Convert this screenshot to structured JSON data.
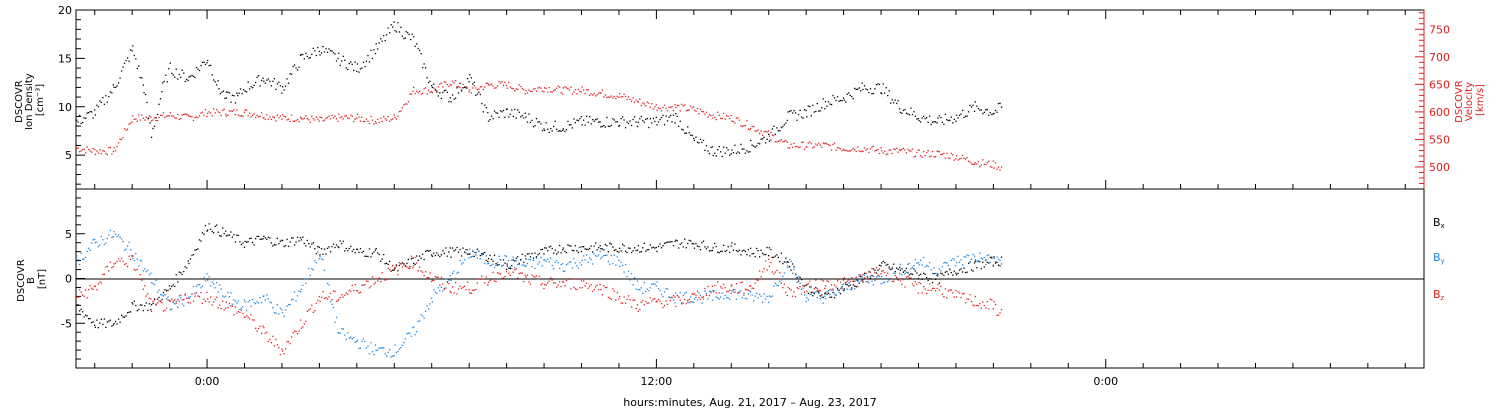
{
  "xlabel": "hours:minutes, Aug. 21, 2017 – Aug. 23, 2017",
  "x_tick_labels": [
    "0:00",
    "12:00",
    "0:00"
  ],
  "colors": {
    "black": "#000000",
    "red": "#e02020",
    "blue": "#1a88e0"
  },
  "panels": {
    "top": {
      "left_label_lines": [
        "DSCOVR",
        "Ion Density",
        "[cm⁻³]"
      ],
      "right_label_lines": [
        "DSCOVR",
        "Velocity",
        "[km/s]"
      ],
      "left_ticks": [
        "20",
        "15",
        "10",
        "5"
      ],
      "right_ticks": [
        "750",
        "700",
        "650",
        "600",
        "550",
        "500"
      ]
    },
    "bottom": {
      "left_label_lines": [
        "DSCOVR",
        "B",
        "[nT]"
      ],
      "left_ticks": [
        "5",
        "0",
        "-5"
      ],
      "legend": [
        "Bx",
        "By",
        "Bz"
      ]
    }
  },
  "chart_data": [
    {
      "type": "scatter",
      "title": "",
      "xlabel": "hours:minutes, Aug. 21, 2017 – Aug. 23, 2017",
      "x_range_hours": [
        -3.5,
        32.5
      ],
      "y_left": {
        "label": "DSCOVR Ion Density [cm^-3]",
        "range": [
          1.5,
          20
        ]
      },
      "y_right": {
        "label": "DSCOVR Velocity [km/s]",
        "range": [
          460,
          785
        ]
      },
      "series": [
        {
          "name": "Ion Density",
          "axis": "left",
          "color": "#000000",
          "x": [
            -3.5,
            -3,
            -2.5,
            -2,
            -1.7,
            -1.5,
            -1.2,
            -1,
            -0.8,
            -0.5,
            0,
            0.3,
            0.5,
            0.8,
            1,
            1.5,
            2,
            2.5,
            3,
            3.5,
            4,
            4.5,
            5,
            5.3,
            5.5,
            6,
            6.5,
            7,
            7.5,
            8,
            8.5,
            9,
            9.5,
            10,
            10.5,
            11,
            11.5,
            12,
            12.5,
            13,
            13.5,
            14,
            14.5,
            15,
            15.5,
            16,
            16.5,
            17,
            17.5,
            18,
            18.5,
            19,
            19.5,
            20,
            20.5,
            21,
            21.2
          ],
          "y": [
            8.5,
            9.5,
            12,
            16,
            12,
            7,
            12,
            14,
            13.5,
            13,
            15,
            12,
            11,
            11,
            12,
            13,
            12,
            15,
            16,
            15,
            14,
            16,
            18.5,
            17.5,
            17,
            12,
            11,
            13,
            9,
            9.5,
            9,
            8,
            8,
            8.5,
            8.5,
            8.5,
            8.5,
            8.5,
            9,
            6.5,
            5.5,
            5.5,
            6,
            7,
            9,
            9.5,
            10.5,
            11,
            12,
            12,
            10,
            9,
            8.5,
            9,
            10,
            9.5,
            10
          ]
        },
        {
          "name": "Velocity",
          "axis": "right",
          "color": "#e02020",
          "x": [
            -3.5,
            -3,
            -2.5,
            -2,
            -1.5,
            -1,
            -0.5,
            0,
            0.5,
            1,
            1.5,
            2,
            2.5,
            3,
            3.5,
            4,
            4.5,
            5,
            5.5,
            6,
            6.5,
            7,
            7.5,
            8,
            8.5,
            9,
            9.5,
            10,
            10.5,
            11,
            11.5,
            12,
            12.5,
            13,
            13.5,
            14,
            14.5,
            15,
            15.5,
            16,
            16.5,
            17,
            17.5,
            18,
            18.5,
            19,
            19.5,
            20,
            20.5,
            21,
            21.2
          ],
          "y": [
            535,
            530,
            530,
            590,
            590,
            595,
            590,
            600,
            600,
            600,
            595,
            590,
            590,
            585,
            590,
            590,
            585,
            590,
            640,
            640,
            655,
            640,
            650,
            650,
            640,
            645,
            640,
            640,
            635,
            630,
            620,
            610,
            610,
            605,
            595,
            590,
            575,
            560,
            540,
            540,
            540,
            535,
            535,
            530,
            530,
            525,
            525,
            520,
            510,
            505,
            500
          ]
        }
      ]
    },
    {
      "type": "scatter",
      "title": "",
      "xlabel": "hours:minutes, Aug. 21, 2017 – Aug. 23, 2017",
      "x_range_hours": [
        -3.5,
        32.5
      ],
      "y_left": {
        "label": "DSCOVR B [nT]",
        "range": [
          -10,
          10
        ]
      },
      "series": [
        {
          "name": "Bx",
          "color": "#000000",
          "x": [
            -3.5,
            -3,
            -2.5,
            -2,
            -1.5,
            -1,
            -0.5,
            0,
            0.5,
            1,
            1.5,
            2,
            2.5,
            3,
            3.5,
            4,
            4.5,
            5,
            5.5,
            6,
            6.5,
            7,
            7.5,
            8,
            8.5,
            9,
            9.5,
            10,
            10.5,
            11,
            11.5,
            12,
            12.5,
            13,
            13.5,
            14,
            14.5,
            15,
            15.5,
            16,
            16.5,
            17,
            17.5,
            18,
            18.5,
            19,
            19.5,
            20,
            20.5,
            21,
            21.2
          ],
          "y": [
            -3,
            -5,
            -5,
            -3,
            -3,
            -1,
            2,
            6,
            5,
            4,
            4.5,
            4,
            4.5,
            3,
            4,
            3,
            3,
            1,
            2,
            3,
            3,
            3,
            2.5,
            1.5,
            2.5,
            3,
            3.5,
            3.5,
            3.5,
            3.5,
            3.5,
            3.5,
            4,
            4,
            3.5,
            3.5,
            3,
            3,
            2,
            -1,
            -2,
            -1,
            0,
            1.5,
            1,
            0.5,
            0,
            1,
            1.5,
            2,
            2
          ]
        },
        {
          "name": "By",
          "color": "#1a88e0",
          "x": [
            -3.5,
            -3,
            -2.5,
            -2,
            -1.5,
            -1,
            -0.5,
            0,
            0.5,
            1,
            1.5,
            2,
            2.5,
            3,
            3.5,
            4,
            4.5,
            5,
            5.5,
            6,
            6.5,
            7,
            7.5,
            8,
            8.5,
            9,
            9.5,
            10,
            10.5,
            11,
            11.5,
            12,
            12.5,
            13,
            13.5,
            14,
            14.5,
            15,
            15.5,
            16,
            16.5,
            17,
            17.5,
            18,
            18.5,
            19,
            19.5,
            20,
            20.5,
            21,
            21.2
          ],
          "y": [
            2,
            4,
            5,
            3,
            0,
            -3,
            -2,
            0,
            -2,
            -3,
            -2,
            -4,
            -1,
            3,
            -6,
            -7,
            -8,
            -8,
            -6,
            -2,
            0,
            3,
            2,
            2,
            1.5,
            2,
            1.5,
            2,
            2.5,
            2,
            -1,
            -1,
            -2,
            -2,
            -2,
            -1.5,
            -2,
            -2,
            2,
            -2,
            -2,
            -1,
            0,
            0,
            1,
            2,
            1,
            2,
            2.5,
            2,
            2
          ]
        },
        {
          "name": "Bz",
          "color": "#e02020",
          "x": [
            -3.5,
            -3,
            -2.5,
            -2,
            -1.5,
            -1,
            -0.5,
            0,
            0.5,
            1,
            1.5,
            2,
            2.5,
            3,
            3.5,
            4,
            4.5,
            5,
            5.5,
            6,
            6.5,
            7,
            7.5,
            8,
            8.5,
            9,
            9.5,
            10,
            10.5,
            11,
            11.5,
            12,
            12.5,
            13,
            13.5,
            14,
            14.5,
            15,
            15.5,
            16,
            16.5,
            17,
            17.5,
            18,
            18.5,
            19,
            19.5,
            20,
            20.5,
            21,
            21.2
          ],
          "y": [
            -2,
            -1,
            2,
            2,
            -3,
            -3,
            -2,
            -2,
            -3,
            -4,
            -6,
            -8,
            -5,
            -2,
            -2,
            -1,
            0,
            1,
            2,
            0,
            -1,
            -1,
            0,
            1,
            0,
            -0.5,
            -0.5,
            -0.5,
            -1,
            -2,
            -3,
            -2.5,
            -2.5,
            -2,
            -1,
            -1,
            -1,
            2,
            -1.5,
            -1,
            -0.5,
            -0.5,
            0,
            1,
            0,
            -1,
            -1,
            -2,
            -2.5,
            -3,
            -4
          ]
        }
      ]
    }
  ]
}
